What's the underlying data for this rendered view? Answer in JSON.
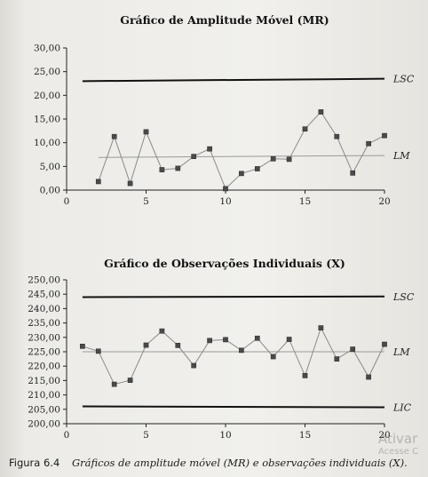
{
  "chart_data": [
    {
      "type": "line",
      "title": "Gráfico de Amplitude Móvel (MR)",
      "xlim": [
        0,
        20
      ],
      "ylim": [
        0,
        30
      ],
      "x_ticks": [
        "0",
        "5",
        "10",
        "15",
        "20"
      ],
      "y_ticks": [
        "0,00",
        "5,00",
        "10,00",
        "15,00",
        "20,00",
        "25,00",
        "30,00"
      ],
      "series": [
        {
          "x": [
            2,
            3,
            4,
            5,
            6,
            7,
            8,
            9,
            10,
            11,
            12,
            13,
            14,
            15,
            16,
            17,
            18,
            19,
            20
          ],
          "values": [
            1.8,
            11.3,
            1.4,
            12.3,
            4.3,
            4.6,
            7.1,
            8.7,
            0.3,
            3.5,
            4.5,
            6.6,
            6.5,
            12.9,
            16.5,
            11.3,
            3.6,
            9.8,
            11.5
          ]
        }
      ],
      "reference_lines": [
        {
          "label": "LSC",
          "y_start": 23.0,
          "y_end": 23.5,
          "x_range": [
            1,
            20
          ]
        },
        {
          "label": "LM",
          "y_start": 6.9,
          "y_end": 7.3,
          "x_range": [
            2,
            20
          ]
        }
      ],
      "grid": false
    },
    {
      "type": "line",
      "title": "Gráfico de Observações Individuais (X)",
      "xlim": [
        0,
        20
      ],
      "ylim": [
        200,
        250
      ],
      "x_ticks": [
        "0",
        "5",
        "10",
        "15",
        "20"
      ],
      "y_ticks": [
        "200,00",
        "205,00",
        "210,00",
        "215,00",
        "220,00",
        "225,00",
        "230,00",
        "235,00",
        "240,00",
        "245,00",
        "250,00"
      ],
      "series": [
        {
          "x": [
            1,
            2,
            3,
            4,
            5,
            6,
            7,
            8,
            9,
            10,
            11,
            12,
            13,
            14,
            15,
            16,
            17,
            18,
            19,
            20
          ],
          "values": [
            226.9,
            225.2,
            213.7,
            215.1,
            227.3,
            232.2,
            227.2,
            220.2,
            228.9,
            229.2,
            225.5,
            229.7,
            223.3,
            229.3,
            216.7,
            233.3,
            222.5,
            225.9,
            216.2,
            227.6
          ]
        }
      ],
      "reference_lines": [
        {
          "label": "LSC",
          "y_start": 244.0,
          "y_end": 244.2,
          "x_range": [
            1,
            20
          ]
        },
        {
          "label": "LM",
          "y_start": 225.0,
          "y_end": 225.0,
          "x_range": [
            1,
            20
          ]
        },
        {
          "label": "LIC",
          "y_start": 206.0,
          "y_end": 205.7,
          "x_range": [
            1,
            20
          ]
        }
      ],
      "grid": false
    }
  ],
  "caption": {
    "figure_number": "Figura 6.4",
    "text": "Gráficos de amplitude móvel (MR) e observações individuais (X)."
  },
  "watermark": {
    "line1": "Ativar",
    "line2": "Acesse C"
  },
  "colors": {
    "line": "#8a8a8a",
    "marker": "#4a4a4a",
    "control_limit": "#111111",
    "center_line": "#9a9a9a",
    "axis": "#222222"
  }
}
